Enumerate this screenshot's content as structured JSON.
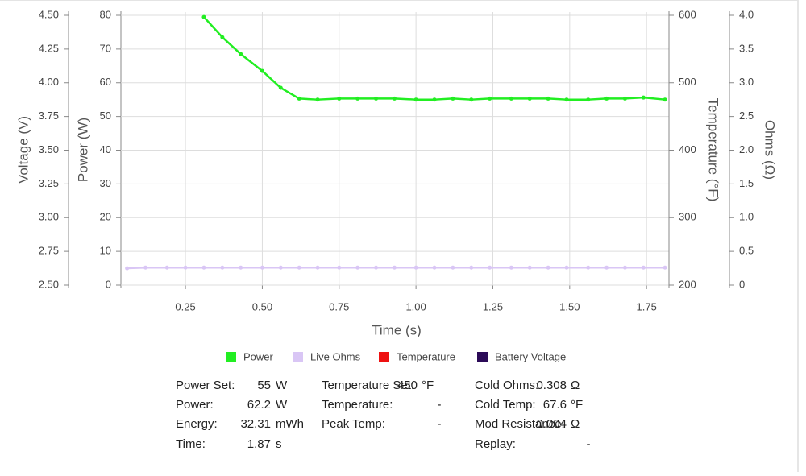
{
  "chart_data": {
    "type": "line",
    "xlabel": "Time (s)",
    "xlim": [
      0.04,
      1.823
    ],
    "xticks": [
      0.25,
      {
        "value": 0.5,
        "label": "0.50"
      },
      0.75,
      {
        "value": 1,
        "label": "1.00"
      },
      1.25,
      {
        "value": 1.5,
        "label": "1.50"
      },
      1.75
    ],
    "ylabel": "Power (W)",
    "ylim": [
      0,
      80
    ],
    "yticks": [
      0,
      10,
      20,
      30,
      40,
      50,
      60,
      70,
      80
    ],
    "y2label": "Temperature (°F)",
    "y2lim": [
      200,
      600
    ],
    "y2ticks": [
      200,
      300,
      400,
      500,
      600
    ],
    "y3label": "Voltage (V)",
    "y3lim": [
      2.5,
      4.5
    ],
    "y3ticks": [
      {
        "value": 2.5,
        "label": "2.50"
      },
      2.75,
      {
        "value": 3,
        "label": "3.00"
      },
      3.25,
      {
        "value": 3.5,
        "label": "3.50"
      },
      3.75,
      {
        "value": 4,
        "label": "4.00"
      },
      4.25,
      {
        "value": 4.5,
        "label": "4.50"
      }
    ],
    "y4label": "Ohms (Ω)",
    "y4lim": [
      0,
      4
    ],
    "y4ticks": [
      0,
      0.5,
      {
        "value": 1,
        "label": "1.0"
      },
      1.5,
      {
        "value": 2,
        "label": "2.0"
      },
      2.5,
      {
        "value": 3,
        "label": "3.0"
      },
      3.5,
      {
        "value": 4,
        "label": "4.0"
      }
    ],
    "grid": true,
    "series": [
      {
        "name": "Power",
        "color": "#22ee22",
        "x": [
          0.31,
          0.37,
          0.43,
          0.5,
          0.56,
          0.62,
          0.68,
          0.75,
          0.81,
          0.87,
          0.93,
          1.0,
          1.06,
          1.12,
          1.18,
          1.24,
          1.31,
          1.37,
          1.43,
          1.49,
          1.56,
          1.62,
          1.68,
          1.74,
          1.81
        ],
        "values": [
          79.5,
          73.5,
          68.5,
          63.5,
          58.5,
          55.3,
          55.0,
          55.3,
          55.3,
          55.3,
          55.3,
          55.0,
          55.0,
          55.3,
          55.0,
          55.3,
          55.3,
          55.3,
          55.3,
          55.0,
          55.0,
          55.3,
          55.3,
          55.6,
          55.0
        ]
      },
      {
        "name": "Live Ohms",
        "color": "#d9c6f5",
        "axis": "y4",
        "x": [
          0.06,
          0.12,
          0.19,
          0.25,
          0.31,
          0.37,
          0.43,
          0.5,
          0.56,
          0.62,
          0.68,
          0.75,
          0.81,
          0.87,
          0.93,
          1.0,
          1.06,
          1.12,
          1.18,
          1.24,
          1.31,
          1.37,
          1.43,
          1.49,
          1.56,
          1.62,
          1.68,
          1.74,
          1.81
        ],
        "values": [
          0.25,
          0.26,
          0.26,
          0.26,
          0.26,
          0.26,
          0.26,
          0.26,
          0.26,
          0.26,
          0.26,
          0.26,
          0.26,
          0.26,
          0.26,
          0.26,
          0.26,
          0.26,
          0.26,
          0.26,
          0.26,
          0.26,
          0.26,
          0.26,
          0.26,
          0.26,
          0.26,
          0.26,
          0.26
        ]
      },
      {
        "name": "Temperature",
        "color": "#ee1111",
        "axis": "y2",
        "x": [],
        "values": []
      },
      {
        "name": "Battery Voltage",
        "color": "#2b0a57",
        "axis": "y3",
        "x": [],
        "values": []
      }
    ]
  },
  "stats": [
    [
      {
        "label": "Power Set:",
        "value": 55,
        "unit": "W"
      },
      {
        "label": "Power:",
        "value": 62.2,
        "unit": "W"
      },
      {
        "label": "Energy:",
        "value": 32.31,
        "unit": "mWh"
      },
      {
        "label": "Time:",
        "value": 1.87,
        "unit": "s"
      }
    ],
    [
      {
        "label": "Temperature Set:",
        "value": 450,
        "unit": "°F"
      },
      {
        "label": "Temperature:",
        "value": "-"
      },
      {
        "label": "Peak Temp:",
        "value": "-"
      }
    ],
    [
      {
        "label": "Cold Ohms:",
        "value": 0.308,
        "unit": "Ω"
      },
      {
        "label": "Cold Temp:",
        "value": 67.6,
        "unit": "°F"
      },
      {
        "label": "Mod Resistance:",
        "value": 0.004,
        "unit": "Ω"
      },
      {
        "label": "Replay:",
        "value": "-"
      }
    ]
  ]
}
